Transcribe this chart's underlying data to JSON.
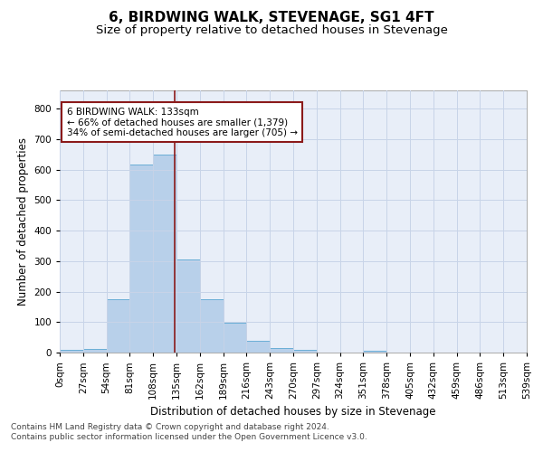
{
  "title": "6, BIRDWING WALK, STEVENAGE, SG1 4FT",
  "subtitle": "Size of property relative to detached houses in Stevenage",
  "xlabel": "Distribution of detached houses by size in Stevenage",
  "ylabel": "Number of detached properties",
  "bar_edges": [
    0,
    27,
    54,
    81,
    108,
    135,
    162,
    189,
    216,
    243,
    270,
    297,
    324,
    351,
    378,
    405,
    432,
    459,
    486,
    513,
    540
  ],
  "bar_heights": [
    8,
    13,
    175,
    618,
    650,
    305,
    175,
    97,
    38,
    15,
    10,
    0,
    0,
    7,
    0,
    0,
    0,
    0,
    0,
    0
  ],
  "bar_color": "#b8d0ea",
  "bar_edge_color": "#6aaed6",
  "vline_x": 133,
  "vline_color": "#8b1a1a",
  "annotation_line1": "6 BIRDWING WALK: 133sqm",
  "annotation_line2": "← 66% of detached houses are smaller (1,379)",
  "annotation_line3": "34% of semi-detached houses are larger (705) →",
  "annotation_box_color": "#8b1a1a",
  "ylim": [
    0,
    860
  ],
  "yticks": [
    0,
    100,
    200,
    300,
    400,
    500,
    600,
    700,
    800
  ],
  "xtick_labels": [
    "0sqm",
    "27sqm",
    "54sqm",
    "81sqm",
    "108sqm",
    "135sqm",
    "162sqm",
    "189sqm",
    "216sqm",
    "243sqm",
    "270sqm",
    "297sqm",
    "324sqm",
    "351sqm",
    "378sqm",
    "405sqm",
    "432sqm",
    "459sqm",
    "486sqm",
    "513sqm",
    "539sqm"
  ],
  "grid_color": "#c8d4e8",
  "bg_color": "#e8eef8",
  "footer_text": "Contains HM Land Registry data © Crown copyright and database right 2024.\nContains public sector information licensed under the Open Government Licence v3.0.",
  "title_fontsize": 11,
  "subtitle_fontsize": 9.5,
  "axis_label_fontsize": 8.5,
  "tick_fontsize": 7.5,
  "footer_fontsize": 6.5
}
